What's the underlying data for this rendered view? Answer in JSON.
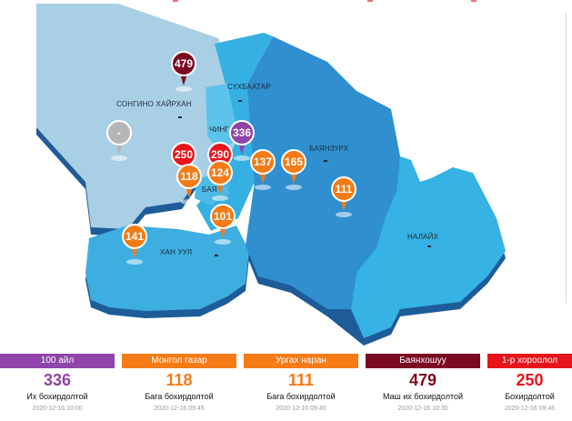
{
  "districts": [
    {
      "name": "СОНГИНО ХАЙРХАН"
    },
    {
      "name": "СҮХБААТАР"
    },
    {
      "name": "ЧИНГ"
    },
    {
      "name": "БАЯНЗҮРХ"
    },
    {
      "name": "БАЯ"
    },
    {
      "name": "ХАН УУЛ"
    },
    {
      "name": "НАЛАЙХ"
    }
  ],
  "markers": [
    {
      "value": "479",
      "color": "#7a0a22"
    },
    {
      "value": "336",
      "color": "#8e44a8"
    },
    {
      "value": "-",
      "color": "#b5b5b5"
    },
    {
      "value": "250",
      "color": "#e8141c"
    },
    {
      "value": "290",
      "color": "#e8141c"
    },
    {
      "value": "118",
      "color": "#f47b16"
    },
    {
      "value": "124",
      "color": "#f47b16"
    },
    {
      "value": "137",
      "color": "#f47b16"
    },
    {
      "value": "165",
      "color": "#f47b16"
    },
    {
      "value": "111",
      "color": "#f47b16"
    },
    {
      "value": "101",
      "color": "#f47b16"
    },
    {
      "value": "141",
      "color": "#f47b16"
    }
  ],
  "cards": [
    {
      "station": "100 айл",
      "value": "336",
      "level": "Их бохирдолтой",
      "time": "2020-12-16 10:00",
      "color": "#8e44a8"
    },
    {
      "station": "Монгол газар",
      "value": "118",
      "level": "Бага бохирдолтой",
      "time": "2020-12-16 09:45",
      "color": "#f47b16"
    },
    {
      "station": "Ургах наран",
      "value": "111",
      "level": "Бага бохирдолтой",
      "time": "2020-12-16 09:45",
      "color": "#f47b16"
    },
    {
      "station": "Баянхошуу",
      "value": "479",
      "level": "Маш их бохирдолтой",
      "time": "2020-12-16 10:30",
      "color": "#7a0a22"
    },
    {
      "station": "1-р хороолол",
      "value": "250",
      "level": "Бохирдолтой",
      "time": "2020-12-16 09:45",
      "color": "#e8141c"
    }
  ]
}
